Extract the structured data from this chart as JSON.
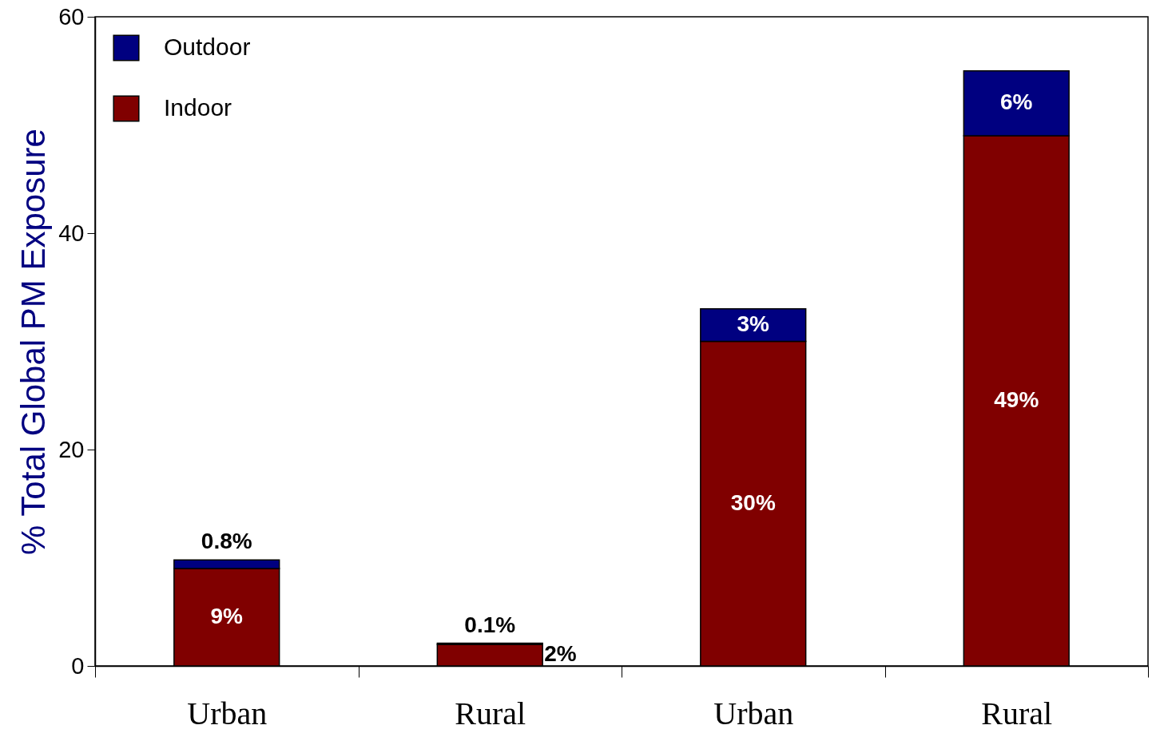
{
  "chart_data": {
    "type": "bar",
    "ylabel": "% Total Global PM Exposure",
    "categories": [
      "Urban",
      "Rural",
      "Urban",
      "Rural"
    ],
    "stacked": true,
    "series": [
      {
        "name": "Indoor",
        "color": "#800000",
        "values": [
          9,
          2,
          30,
          49
        ],
        "value_labels": [
          "9%",
          "2%",
          "30%",
          "49%"
        ]
      },
      {
        "name": "Outdoor",
        "color": "#000080",
        "values": [
          0.8,
          0.1,
          3,
          6
        ],
        "value_labels": [
          "0.8%",
          "0.1%",
          "3%",
          "6%"
        ]
      }
    ],
    "ylim": [
      0,
      60
    ],
    "yticks": [
      0,
      20,
      40,
      60
    ],
    "grid": false,
    "legend": "top left"
  }
}
